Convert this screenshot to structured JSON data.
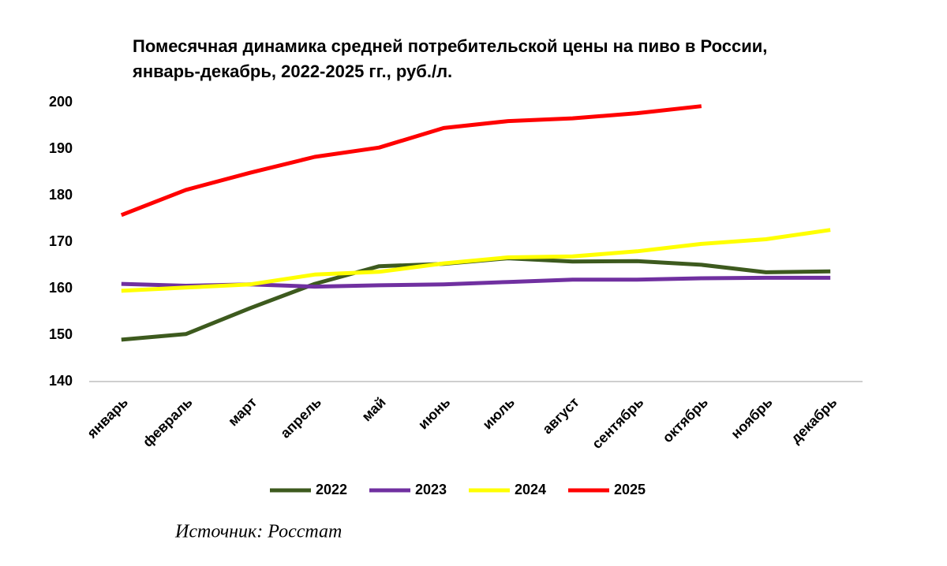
{
  "chart_data": {
    "type": "line",
    "title": [
      "Помесячная динамика средней потребительской цены на пиво в России,",
      "январь-декабрь, 2022-2025 гг., руб./л."
    ],
    "categories": [
      "январь",
      "февраль",
      "март",
      "апрель",
      "май",
      "июнь",
      "июль",
      "август",
      "сентябрь",
      "октябрь",
      "ноябрь",
      "декабрь"
    ],
    "series": [
      {
        "name": "2022",
        "color": "#3d5a1e",
        "values": [
          149,
          150.2,
          155.8,
          161,
          164.8,
          165.3,
          166.5,
          165.8,
          165.9,
          165.1,
          163.5,
          163.7
        ]
      },
      {
        "name": "2023",
        "color": "#7030a0",
        "values": [
          161,
          160.6,
          160.9,
          160.4,
          160.7,
          160.9,
          161.4,
          161.9,
          161.9,
          162.2,
          162.3,
          162.3
        ]
      },
      {
        "name": "2024",
        "color": "#ffff00",
        "values": [
          159.5,
          160.2,
          160.9,
          163,
          163.6,
          165.4,
          166.7,
          166.9,
          168,
          169.6,
          170.6,
          172.6
        ]
      },
      {
        "name": "2025",
        "color": "#ff0000",
        "values": [
          175.8,
          181.2,
          184.9,
          188.3,
          190.3,
          194.5,
          196,
          196.6,
          197.7,
          199.2,
          null,
          null
        ]
      }
    ],
    "ylim": [
      140,
      200
    ],
    "yticks": [
      140,
      150,
      160,
      170,
      180,
      190,
      200
    ],
    "grid": false,
    "legend": "bottom",
    "source": "Источник: Росстат"
  }
}
